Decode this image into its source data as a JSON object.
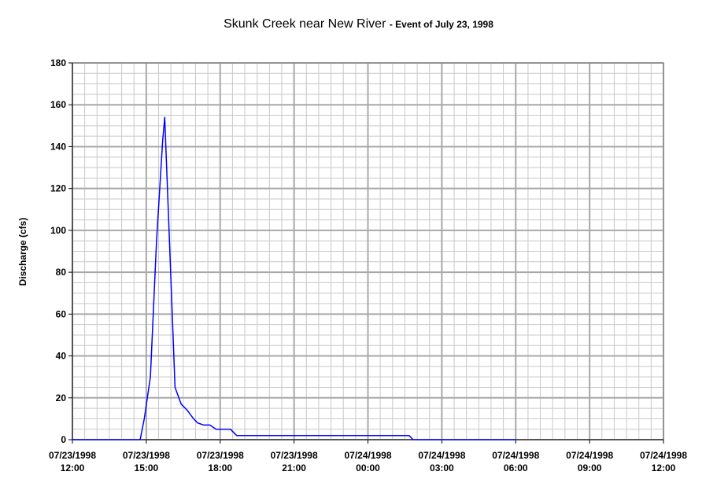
{
  "chart_data": {
    "type": "line",
    "title": "Skunk Creek near New River",
    "subtitle": "- Event of July 23, 1998",
    "xlabel": "",
    "ylabel": "Discharge (cfs)",
    "ylim": [
      0,
      180
    ],
    "y_ticks": [
      0,
      20,
      40,
      60,
      80,
      100,
      120,
      140,
      160,
      180
    ],
    "xlim": [
      "07/23/1998 12:00",
      "07/24/1998 12:00"
    ],
    "x_ticks": [
      {
        "date": "07/23/1998",
        "time": "12:00"
      },
      {
        "date": "07/23/1998",
        "time": "15:00"
      },
      {
        "date": "07/23/1998",
        "time": "18:00"
      },
      {
        "date": "07/23/1998",
        "time": "21:00"
      },
      {
        "date": "07/24/1998",
        "time": "00:00"
      },
      {
        "date": "07/24/1998",
        "time": "03:00"
      },
      {
        "date": "07/24/1998",
        "time": "06:00"
      },
      {
        "date": "07/24/1998",
        "time": "09:00"
      },
      {
        "date": "07/24/1998",
        "time": "12:00"
      }
    ],
    "grid": true,
    "legend": "none",
    "series": [
      {
        "color": "#0000ff",
        "x": [
          "07/23/1998 12:00",
          "07/23/1998 14:45",
          "07/23/1998 14:55",
          "07/23/1998 15:10",
          "07/23/1998 15:25",
          "07/23/1998 15:40",
          "07/23/1998 15:45",
          "07/23/1998 16:10",
          "07/23/1998 16:25",
          "07/23/1998 16:40",
          "07/23/1998 16:55",
          "07/23/1998 17:05",
          "07/23/1998 17:20",
          "07/23/1998 17:35",
          "07/23/1998 17:50",
          "07/23/1998 18:20",
          "07/23/1998 18:25",
          "07/23/1998 18:40",
          "07/24/1998 01:40",
          "07/24/1998 01:50",
          "07/24/1998 06:00"
        ],
        "y": [
          0,
          0,
          10,
          30,
          95,
          143,
          154,
          25,
          17,
          14,
          10,
          8,
          7,
          7,
          5,
          5,
          5,
          2,
          2,
          0,
          0
        ]
      }
    ]
  }
}
